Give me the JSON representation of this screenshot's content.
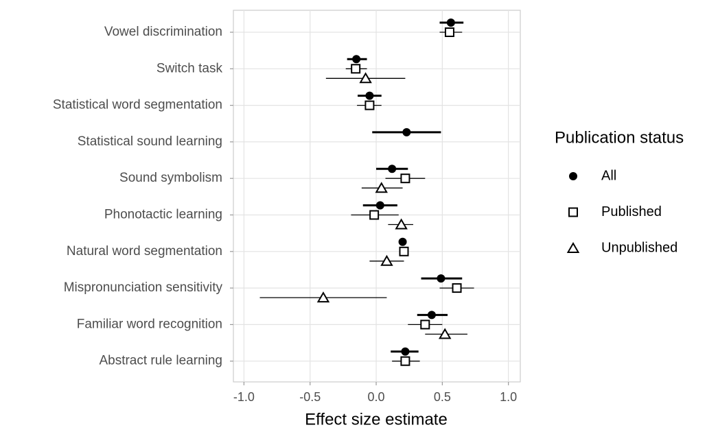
{
  "chart_data": {
    "type": "forest",
    "xlabel": "Effect size estimate",
    "legend_title": "Publication status",
    "legend_position": "right",
    "grid": true,
    "categories": [
      "Vowel discrimination",
      "Switch task",
      "Statistical word segmentation",
      "Statistical sound learning",
      "Sound symbolism",
      "Phonotactic learning",
      "Natural word segmentation",
      "Mispronunciation sensitivity",
      "Familiar word recognition",
      "Abstract rule learning"
    ],
    "xlim": [
      -1.08,
      1.09
    ],
    "xticks": [
      {
        "value": -1,
        "label": "-1.0"
      },
      {
        "value": -0.5,
        "label": "-0.5"
      },
      {
        "value": 0,
        "label": "0.0"
      },
      {
        "value": 0.5,
        "label": "0.5"
      },
      {
        "value": 1,
        "label": "1.0"
      }
    ],
    "series": [
      {
        "name": "All",
        "color": "#000000",
        "shape": "circle",
        "filled": true,
        "linewidth": 3,
        "values": [
          0.565,
          -0.15,
          -0.05,
          0.23,
          0.12,
          0.03,
          0.2,
          0.49,
          0.42,
          0.22
        ],
        "lower": [
          0.48,
          -0.22,
          -0.14,
          -0.03,
          0.0,
          -0.1,
          0.18,
          0.34,
          0.31,
          0.11
        ],
        "upper": [
          0.66,
          -0.07,
          0.04,
          0.49,
          0.24,
          0.16,
          0.23,
          0.65,
          0.54,
          0.32
        ]
      },
      {
        "name": "Published",
        "color": "#000000",
        "shape": "square",
        "filled": false,
        "linewidth": 1.3,
        "values": [
          0.555,
          -0.155,
          -0.05,
          null,
          0.22,
          -0.015,
          0.21,
          0.61,
          0.37,
          0.22
        ],
        "lower": [
          0.48,
          -0.23,
          -0.145,
          null,
          0.07,
          -0.19,
          0.18,
          0.48,
          0.24,
          0.12
        ],
        "upper": [
          0.65,
          -0.07,
          0.04,
          null,
          0.37,
          0.17,
          0.24,
          0.74,
          0.5,
          0.33
        ]
      },
      {
        "name": "Unpublished",
        "color": "#000000",
        "shape": "triangle",
        "filled": false,
        "linewidth": 1.3,
        "values": [
          null,
          -0.08,
          null,
          null,
          0.04,
          0.19,
          0.08,
          -0.4,
          0.52,
          null
        ],
        "lower": [
          null,
          -0.38,
          null,
          null,
          -0.11,
          0.09,
          -0.05,
          -0.88,
          0.37,
          null
        ],
        "upper": [
          null,
          0.22,
          null,
          null,
          0.2,
          0.28,
          0.21,
          0.08,
          0.69,
          null
        ]
      }
    ]
  }
}
